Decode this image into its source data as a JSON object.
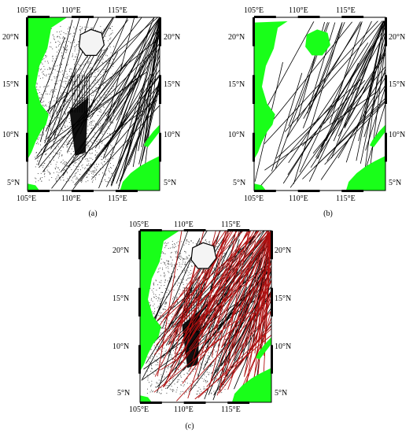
{
  "panels": [
    {
      "caption": "(a)",
      "tracks": "black"
    },
    {
      "caption": "(b)",
      "tracks": "black"
    },
    {
      "caption": "(c)",
      "tracks": "black+red"
    }
  ],
  "longitude_labels": [
    "105°E",
    "110°E",
    "115°E"
  ],
  "latitude_labels": [
    "20°N",
    "15°N",
    "10°N",
    "5°N"
  ],
  "colors": {
    "land": "#19ff19",
    "ocean": "#ffffff",
    "track_black": "#000000",
    "track_red": "#b01010",
    "frame": "#000000"
  }
}
